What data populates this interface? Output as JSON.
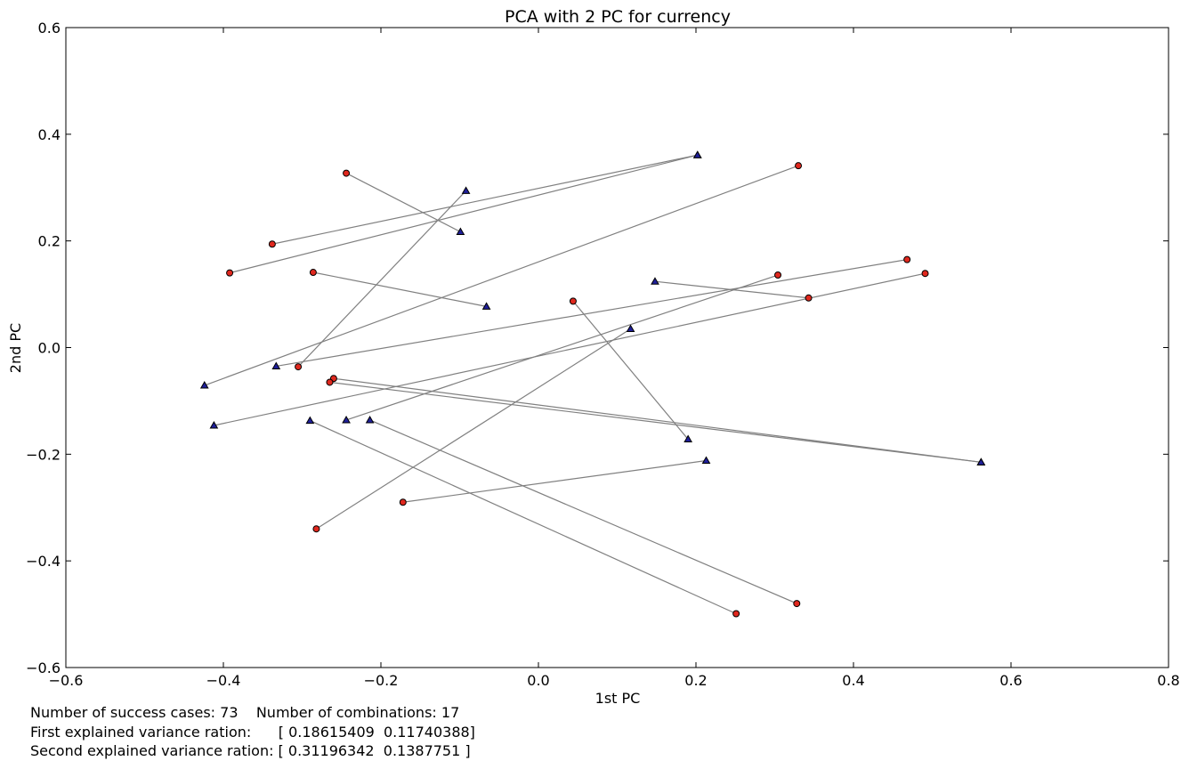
{
  "chart_data": {
    "type": "scatter",
    "title": "PCA with 2 PC for currency",
    "xlabel": "1st PC",
    "ylabel": "2nd PC",
    "xlim": [
      -0.6,
      0.8
    ],
    "ylim": [
      -0.6,
      0.6
    ],
    "xticks": [
      -0.6,
      -0.4,
      -0.2,
      0.0,
      0.2,
      0.4,
      0.6,
      0.8
    ],
    "yticks": [
      -0.6,
      -0.4,
      -0.2,
      0.0,
      0.2,
      0.4,
      0.6
    ],
    "xtick_labels": [
      "−0.6",
      "−0.4",
      "−0.2",
      "0.0",
      "0.2",
      "0.4",
      "0.6",
      "0.8"
    ],
    "ytick_labels": [
      "−0.6",
      "−0.4",
      "−0.2",
      "0.0",
      "0.2",
      "0.4",
      "0.6"
    ],
    "grid": false,
    "colors": {
      "circle": "#e0281e",
      "triangle": "#1f1f9a",
      "line": "#808080"
    },
    "pairs": [
      {
        "circle": [
          -0.244,
          0.327
        ],
        "triangle": [
          -0.099,
          0.217
        ]
      },
      {
        "circle": [
          -0.338,
          0.194
        ],
        "triangle": [
          0.202,
          0.361
        ]
      },
      {
        "circle": [
          -0.392,
          0.14
        ],
        "triangle": [
          0.202,
          0.361
        ]
      },
      {
        "circle": [
          -0.286,
          0.141
        ],
        "triangle": [
          -0.066,
          0.077
        ]
      },
      {
        "circle": [
          0.33,
          0.341
        ],
        "triangle": [
          -0.424,
          -0.071
        ]
      },
      {
        "circle": [
          0.468,
          0.165
        ],
        "triangle": [
          -0.333,
          -0.035
        ]
      },
      {
        "circle": [
          0.491,
          0.139
        ],
        "triangle": [
          -0.412,
          -0.146
        ]
      },
      {
        "circle": [
          0.304,
          0.136
        ],
        "triangle": [
          -0.244,
          -0.136
        ]
      },
      {
        "circle": [
          0.343,
          0.093
        ],
        "triangle": [
          0.148,
          0.124
        ]
      },
      {
        "circle": [
          0.044,
          0.087
        ],
        "triangle": [
          0.19,
          -0.172
        ]
      },
      {
        "circle": [
          -0.305,
          -0.036
        ],
        "triangle": [
          -0.092,
          0.294
        ]
      },
      {
        "circle": [
          -0.26,
          -0.058
        ],
        "triangle": [
          0.562,
          -0.215
        ]
      },
      {
        "circle": [
          -0.265,
          -0.065
        ],
        "triangle": [
          0.562,
          -0.215
        ]
      },
      {
        "circle": [
          -0.172,
          -0.29
        ],
        "triangle": [
          0.213,
          -0.212
        ]
      },
      {
        "circle": [
          -0.282,
          -0.34
        ],
        "triangle": [
          0.117,
          0.035
        ]
      },
      {
        "circle": [
          0.251,
          -0.499
        ],
        "triangle": [
          -0.29,
          -0.137
        ]
      },
      {
        "circle": [
          0.328,
          -0.48
        ],
        "triangle": [
          -0.214,
          -0.136
        ]
      }
    ]
  },
  "stats": {
    "line1": "Number of success cases: 73    Number of combinations: 17",
    "line2": "First explained variance ration:      [ 0.18615409  0.11740388]",
    "line3": "Second explained variance ration: [ 0.31196342  0.1387751 ]"
  }
}
